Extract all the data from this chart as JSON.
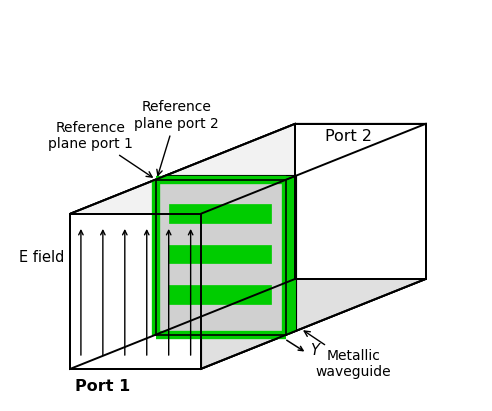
{
  "fig_width": 4.92,
  "fig_height": 4.11,
  "dpi": 100,
  "bg_color": "#ffffff",
  "edge_color": "#000000",
  "face_white": "#ffffff",
  "face_light": "#f2f2f2",
  "face_mid": "#e0e0e0",
  "face_dark": "#c8c8c8",
  "panel_face_color": "#d0d0d0",
  "panel_side_color": "#b0b0b0",
  "green_color": "#00cc00",
  "arrow_color": "#000000",
  "text_color": "#000000",
  "labels": {
    "ref_port1": "Reference\nplane port 1",
    "ref_port2": "Reference\nplane port 2",
    "port1": "Port 1",
    "port2": "Port 2",
    "efield": "E field",
    "metallic": "Metallic\nwaveguide",
    "Y_label": "Y"
  },
  "fontsize": 10.5
}
